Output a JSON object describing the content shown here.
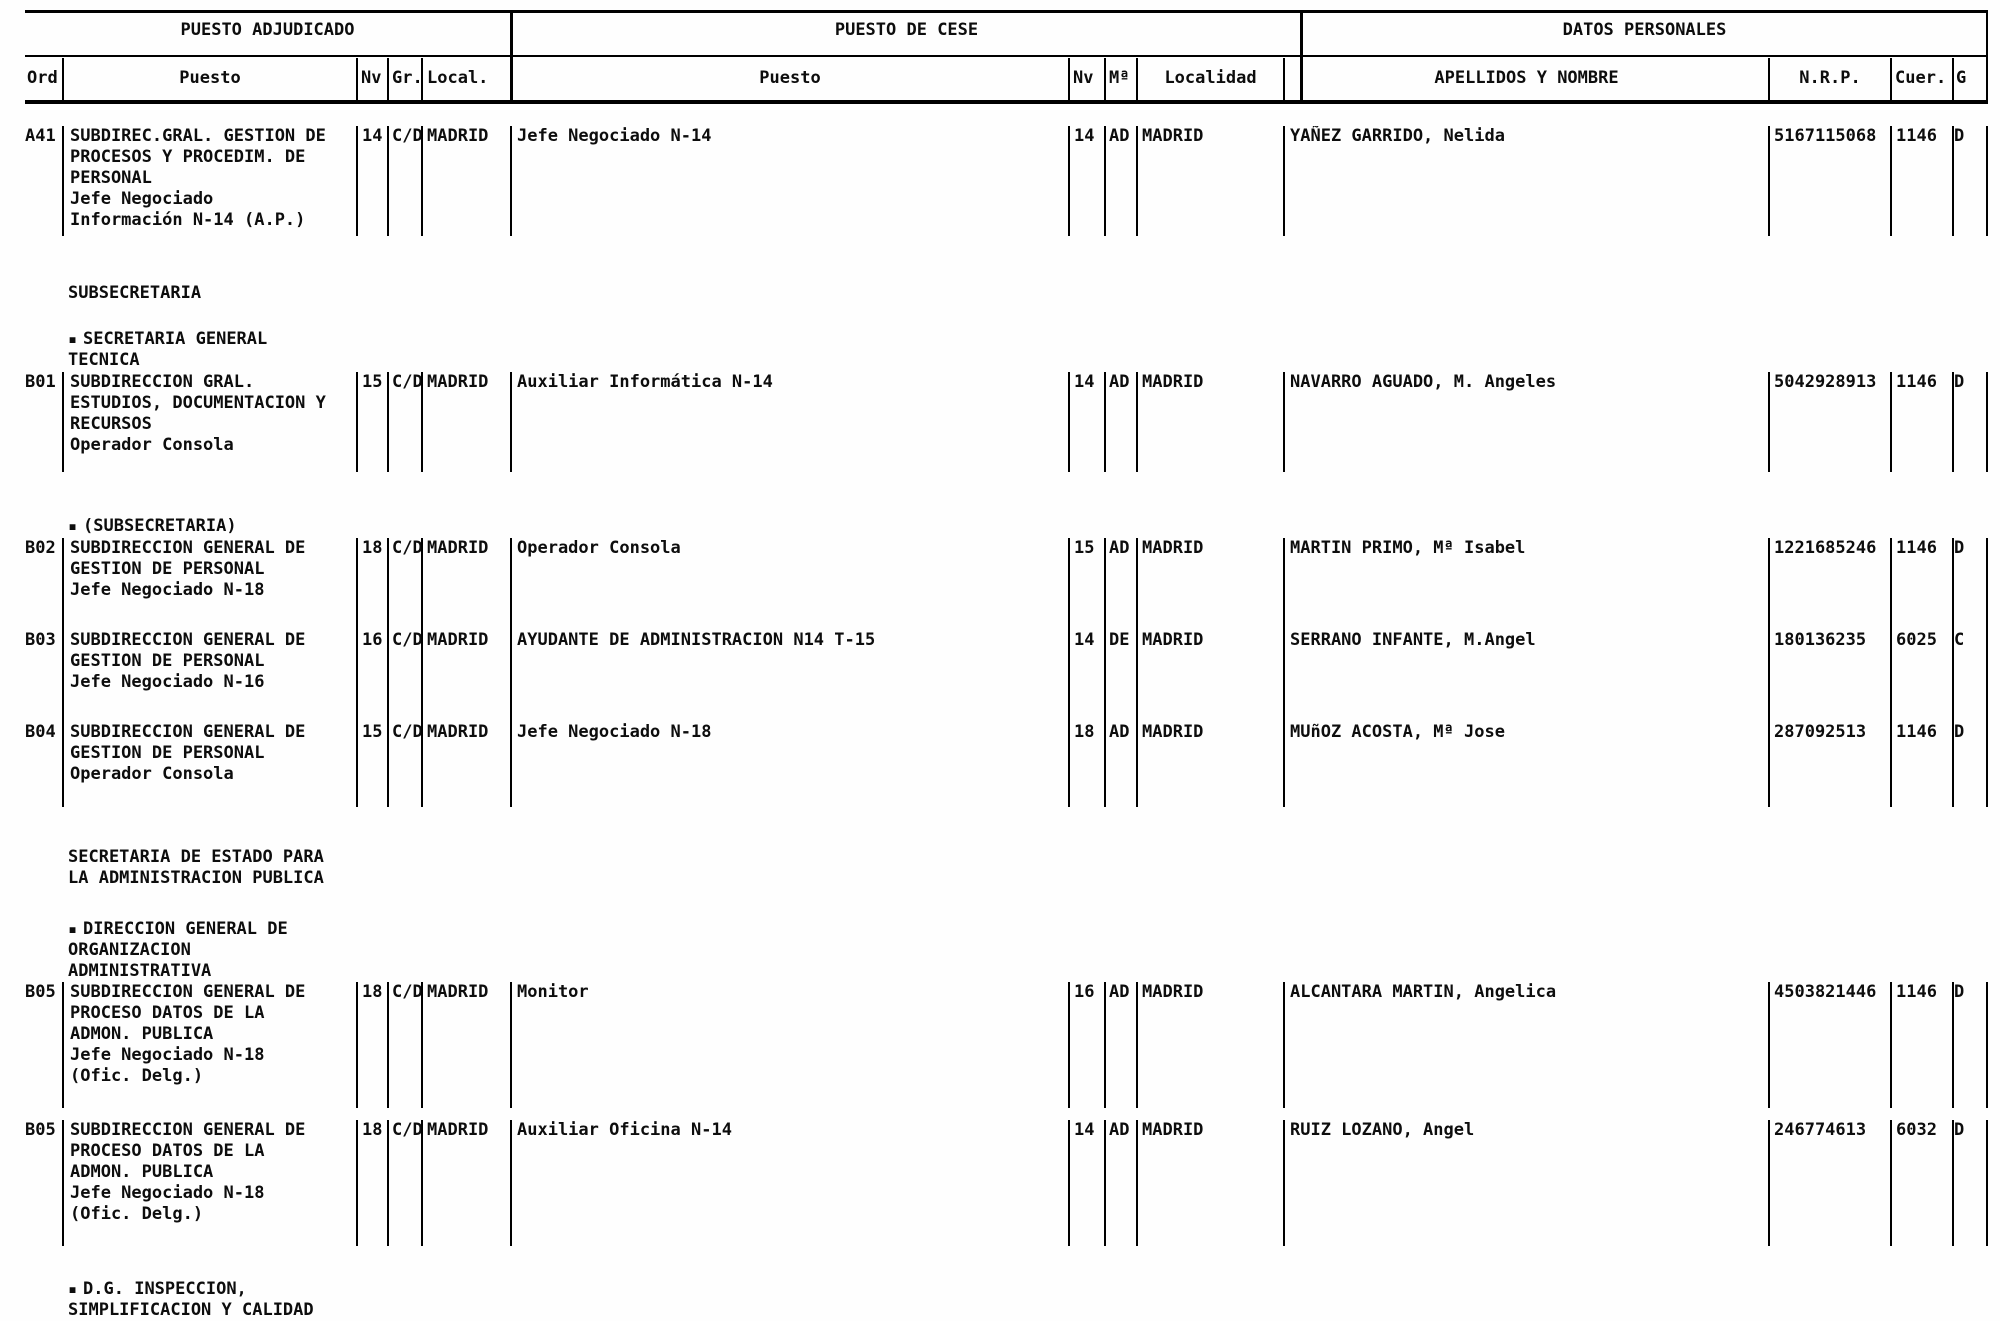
{
  "header": {
    "groups": [
      {
        "title": "PUESTO ADJUDICADO"
      },
      {
        "title": "PUESTO DE CESE"
      },
      {
        "title": "DATOS PERSONALES"
      }
    ],
    "columns": {
      "ord": "Ord",
      "puesto_adjudicado": "Puesto",
      "nv_adjudicado": "Nv",
      "gr": "Gr.",
      "local": "Local.",
      "puesto_cese": "Puesto",
      "nv_cese": "Nv",
      "ministerio": "Mª",
      "localidad": "Localidad",
      "apellidos": "APELLIDOS Y NOMBRE",
      "nrp": "N.R.P.",
      "cuerpo": "Cuer.",
      "grupo": "G"
    }
  },
  "sections": [
    {
      "bullet": "",
      "text": "SUBSECRETARIA"
    },
    {
      "bullet": "▪",
      "text": "SECRETARIA GENERAL\nTECNICA"
    },
    {
      "bullet": "▪",
      "text": "(SUBSECRETARIA)"
    },
    {
      "bullet": "",
      "text": "SECRETARIA DE ESTADO PARA\nLA ADMINISTRACION PUBLICA"
    },
    {
      "bullet": "▪",
      "text": "DIRECCION GENERAL DE\nORGANIZACION\nADMINISTRATIVA"
    },
    {
      "bullet": "▪",
      "text": "D.G. INSPECCION,\nSIMPLIFICACION Y CALIDAD"
    }
  ],
  "rows": [
    {
      "ord": "A41",
      "adjudicado": {
        "puesto": "SUBDIREC.GRAL. GESTION DE\nPROCESOS Y PROCEDIM. DE\nPERSONAL\nJefe Negociado\nInformación N-14 (A.P.)",
        "nv": "14",
        "gr": "C/D",
        "local": "MADRID"
      },
      "cese": {
        "puesto": "Jefe Negociado N-14",
        "nv": "14",
        "ministerio": "AD",
        "localidad": "MADRID"
      },
      "personales": {
        "nombre": "YAÑEZ GARRIDO, Nelida",
        "nrp": "5167115068",
        "cuerpo": "1146",
        "grupo": "D"
      }
    },
    {
      "ord": "B01",
      "adjudicado": {
        "puesto": "SUBDIRECCION GRAL.\nESTUDIOS, DOCUMENTACION Y\nRECURSOS\nOperador Consola",
        "nv": "15",
        "gr": "C/D",
        "local": "MADRID"
      },
      "cese": {
        "puesto": "Auxiliar Informática N-14",
        "nv": "14",
        "ministerio": "AD",
        "localidad": "MADRID"
      },
      "personales": {
        "nombre": "NAVARRO AGUADO, M. Angeles",
        "nrp": "5042928913",
        "cuerpo": "1146",
        "grupo": "D"
      }
    },
    {
      "ord": "B02",
      "adjudicado": {
        "puesto": "SUBDIRECCION GENERAL DE\nGESTION DE PERSONAL\nJefe Negociado N-18",
        "nv": "18",
        "gr": "C/D",
        "local": "MADRID"
      },
      "cese": {
        "puesto": "Operador Consola",
        "nv": "15",
        "ministerio": "AD",
        "localidad": "MADRID"
      },
      "personales": {
        "nombre": "MARTIN PRIMO, Mª Isabel",
        "nrp": "1221685246",
        "cuerpo": "1146",
        "grupo": "D"
      }
    },
    {
      "ord": "B03",
      "adjudicado": {
        "puesto": "SUBDIRECCION GENERAL DE\nGESTION DE PERSONAL\nJefe Negociado N-16",
        "nv": "16",
        "gr": "C/D",
        "local": "MADRID"
      },
      "cese": {
        "puesto": "AYUDANTE DE ADMINISTRACION N14 T-15",
        "nv": "14",
        "ministerio": "DE",
        "localidad": "MADRID"
      },
      "personales": {
        "nombre": "SERRANO INFANTE, M.Angel",
        "nrp": "180136235",
        "cuerpo": "6025",
        "grupo": "C"
      }
    },
    {
      "ord": "B04",
      "adjudicado": {
        "puesto": "SUBDIRECCION GENERAL DE\nGESTION DE PERSONAL\nOperador Consola",
        "nv": "15",
        "gr": "C/D",
        "local": "MADRID"
      },
      "cese": {
        "puesto": "Jefe Negociado N-18",
        "nv": "18",
        "ministerio": "AD",
        "localidad": "MADRID"
      },
      "personales": {
        "nombre": "MUñOZ ACOSTA, Mª Jose",
        "nrp": "287092513",
        "cuerpo": "1146",
        "grupo": "D"
      }
    },
    {
      "ord": "B05",
      "adjudicado": {
        "puesto": "SUBDIRECCION GENERAL DE\nPROCESO DATOS DE LA\nADMON. PUBLICA\nJefe Negociado N-18\n(Ofic. Delg.)",
        "nv": "18",
        "gr": "C/D",
        "local": "MADRID"
      },
      "cese": {
        "puesto": "Monitor",
        "nv": "16",
        "ministerio": "AD",
        "localidad": "MADRID"
      },
      "personales": {
        "nombre": "ALCANTARA MARTIN, Angelica",
        "nrp": "4503821446",
        "cuerpo": "1146",
        "grupo": "D"
      }
    },
    {
      "ord": "B05",
      "adjudicado": {
        "puesto": "SUBDIRECCION GENERAL DE\nPROCESO DATOS DE LA\nADMON. PUBLICA\nJefe Negociado N-18\n(Ofic. Delg.)",
        "nv": "18",
        "gr": "C/D",
        "local": "MADRID"
      },
      "cese": {
        "puesto": "Auxiliar Oficina N-14",
        "nv": "14",
        "ministerio": "AD",
        "localidad": "MADRID"
      },
      "personales": {
        "nombre": "RUIZ LOZANO, Angel",
        "nrp": "246774613",
        "cuerpo": "6032",
        "grupo": "D"
      }
    }
  ]
}
